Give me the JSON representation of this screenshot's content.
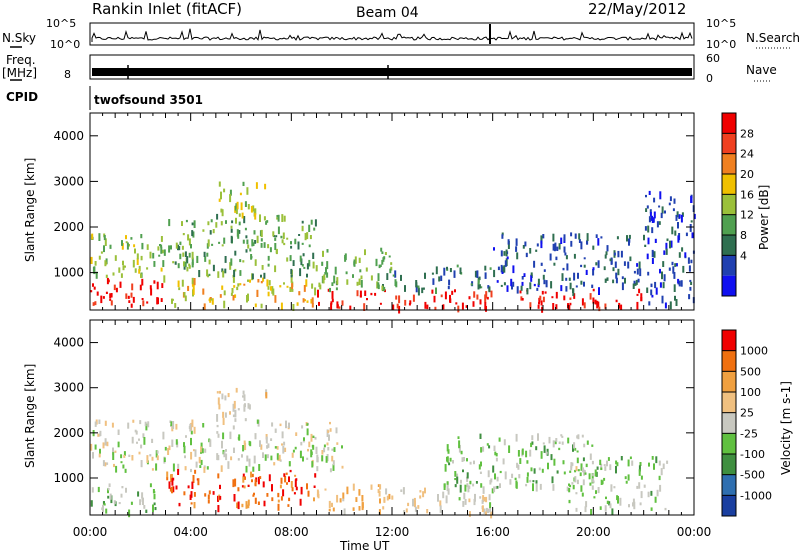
{
  "header": {
    "title": "Rankin Inlet (fitACF)",
    "beam": "Beam 04",
    "date": "22/May/2012"
  },
  "top_panels": {
    "nsky_label": "N.Sky",
    "nsearch_label": "N.Search",
    "nsky_ticks": [
      "10^5",
      "10^0"
    ],
    "nsearch_ticks": [
      "10^5",
      "10^0"
    ],
    "freq_label": "Freq.",
    "freq_unit": "[MHz]",
    "freq_ticks": [
      "8"
    ],
    "nave_label": "Nave",
    "nave_ticks": [
      "60",
      "0"
    ],
    "cpid_label": "CPID",
    "cpid_value": "twofsound 3501"
  },
  "x_axis": {
    "label": "Time UT",
    "ticks": [
      "00:00",
      "04:00",
      "08:00",
      "12:00",
      "16:00",
      "20:00",
      "00:00"
    ]
  },
  "power_panel": {
    "ylabel": "Slant Range [km]",
    "yticks": [
      "4000",
      "3000",
      "2000",
      "1000"
    ],
    "colorbar_label": "Power [dB]",
    "colorbar_ticks": [
      "28",
      "24",
      "20",
      "16",
      "12",
      "8",
      "4"
    ],
    "colors": [
      "#1010f0",
      "#2040b0",
      "#2f6f50",
      "#50a050",
      "#9bc03a",
      "#f0c000",
      "#f08020",
      "#f04020",
      "#f00000"
    ]
  },
  "velocity_panel": {
    "ylabel": "Slant Range [km]",
    "yticks": [
      "4000",
      "3000",
      "2000",
      "1000"
    ],
    "colorbar_label": "Velocity [m s-1]",
    "colorbar_ticks": [
      "1000",
      "500",
      "100",
      "25",
      "-25",
      "-100",
      "-500",
      "-1000"
    ],
    "colors": [
      "#1a3fa0",
      "#2f6fb0",
      "#3f8f40",
      "#60c040",
      "#c8c8c0",
      "#f0c080",
      "#f0a040",
      "#f07010",
      "#f00000"
    ]
  },
  "chart_data": [
    {
      "type": "heatmap",
      "title": "Power [dB]",
      "xlabel": "Time UT",
      "ylabel": "Slant Range [km]",
      "xlim": [
        0,
        24
      ],
      "ylim": [
        180,
        4500
      ],
      "zlim": [
        0,
        30
      ],
      "x_ticks": [
        "00:00",
        "04:00",
        "08:00",
        "12:00",
        "16:00",
        "20:00",
        "00:00"
      ],
      "y_ticks": [
        1000,
        2000,
        3000,
        4000
      ],
      "regions": [
        {
          "t": [
            0,
            3
          ],
          "range": [
            300,
            900
          ],
          "value": 28
        },
        {
          "t": [
            0,
            3
          ],
          "range": [
            900,
            1900
          ],
          "value": 14
        },
        {
          "t": [
            3,
            9
          ],
          "range": [
            300,
            900
          ],
          "value": 18
        },
        {
          "t": [
            3,
            9
          ],
          "range": [
            900,
            2300
          ],
          "value": 12
        },
        {
          "t": [
            5,
            7
          ],
          "range": [
            2300,
            3000
          ],
          "value": 16
        },
        {
          "t": [
            9,
            16
          ],
          "range": [
            250,
            650
          ],
          "value": 28
        },
        {
          "t": [
            9,
            12
          ],
          "range": [
            650,
            1600
          ],
          "value": 12
        },
        {
          "t": [
            12,
            16
          ],
          "range": [
            650,
            1200
          ],
          "value": 8
        },
        {
          "t": [
            17,
            22
          ],
          "range": [
            250,
            650
          ],
          "value": 28
        },
        {
          "t": [
            16,
            22
          ],
          "range": [
            650,
            1900
          ],
          "value": 6
        },
        {
          "t": [
            22,
            24
          ],
          "range": [
            300,
            2800
          ],
          "value": 5
        }
      ]
    },
    {
      "type": "heatmap",
      "title": "Velocity [m s-1]",
      "xlabel": "Time UT",
      "ylabel": "Slant Range [km]",
      "xlim": [
        0,
        24
      ],
      "ylim": [
        180,
        4500
      ],
      "zlim": [
        -1000,
        1000
      ],
      "x_ticks": [
        "00:00",
        "04:00",
        "08:00",
        "12:00",
        "16:00",
        "20:00",
        "00:00"
      ],
      "y_ticks": [
        1000,
        2000,
        3000,
        4000
      ],
      "regions": [
        {
          "t": [
            0,
            3
          ],
          "range": [
            300,
            900
          ],
          "value": -150
        },
        {
          "t": [
            0,
            10
          ],
          "range": [
            1200,
            2300
          ],
          "value": 0
        },
        {
          "t": [
            3,
            9
          ],
          "range": [
            400,
            1200
          ],
          "value": 700
        },
        {
          "t": [
            5,
            7
          ],
          "range": [
            2300,
            3000
          ],
          "value": 150
        },
        {
          "t": [
            9,
            12
          ],
          "range": [
            300,
            900
          ],
          "value": 300
        },
        {
          "t": [
            12,
            16
          ],
          "range": [
            250,
            800
          ],
          "value": 80
        },
        {
          "t": [
            14,
            20
          ],
          "range": [
            800,
            2000
          ],
          "value": -150
        },
        {
          "t": [
            19,
            23
          ],
          "range": [
            300,
            1500
          ],
          "value": -120
        }
      ]
    }
  ]
}
